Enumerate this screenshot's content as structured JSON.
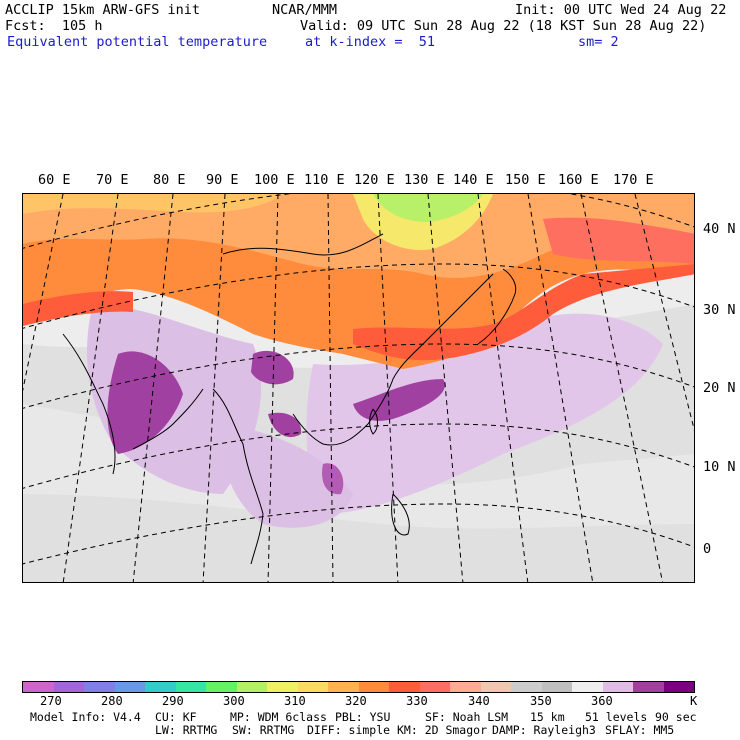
{
  "header": {
    "line1_left": "ACCLIP 15km ARW-GFS init",
    "line1_mid": "NCAR/MMM",
    "line1_right": "Init: 00 UTC Wed 24 Aug 22",
    "line2_left": "Fcst:  105 h",
    "line2_right": "Valid: 09 UTC Sun 28 Aug 22 (18 KST Sun 28 Aug 22)",
    "line3_left": "Equivalent potential temperature",
    "line3_mid": "at k-index =  51",
    "line3_right": "sm= 2"
  },
  "map": {
    "lon_labels": [
      "60 E",
      "70 E",
      "80 E",
      "90 E",
      "100 E",
      "110 E",
      "120 E",
      "130 E",
      "140 E",
      "150 E",
      "160 E",
      "170 E"
    ],
    "lat_labels": [
      "40 N",
      "30 N",
      "20 N",
      "10 N",
      "0"
    ]
  },
  "colorbar": {
    "colors": [
      "#cc66cc",
      "#a366d9",
      "#7f7fe6",
      "#6699e6",
      "#33cccc",
      "#33e6a3",
      "#66f066",
      "#b3f066",
      "#f0f066",
      "#ffd966",
      "#ffb350",
      "#ff8c3c",
      "#ff5c3c",
      "#ff6f60",
      "#ffab8f",
      "#f2c7b0",
      "#cccccc",
      "#bfbfbf",
      "#eeeeee",
      "#e0bce6",
      "#a040a0",
      "#7a0080"
    ],
    "labels": [
      "270",
      "280",
      "290",
      "300",
      "310",
      "320",
      "330",
      "340",
      "350",
      "360",
      "K"
    ]
  },
  "model_info": {
    "line1": [
      "Model Info: V4.4",
      "CU: KF",
      "MP: WDM 6class",
      "PBL: YSU",
      "SF: Noah LSM",
      "15 km",
      "51 levels",
      "90 sec"
    ],
    "line2": [
      "LW: RRTMG",
      "SW: RRTMG",
      "DIFF: simple",
      "KM: 2D Smagor",
      "DAMP: Rayleigh3",
      "SFLAY: MM5"
    ]
  }
}
